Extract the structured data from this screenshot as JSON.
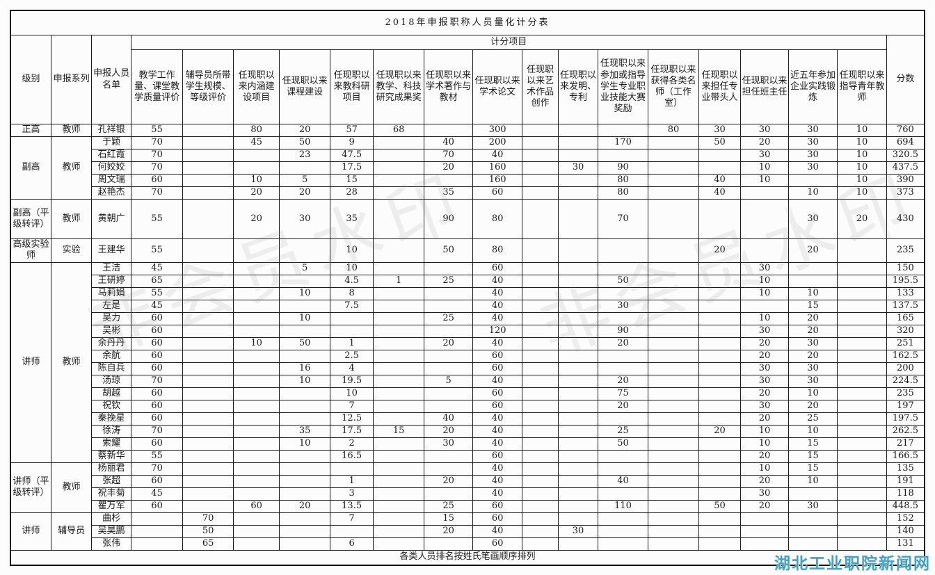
{
  "title": "2018年申报职称人员量化计分表",
  "header": {
    "scoring_group_label": "计分项目",
    "fixed_columns": [
      "级别",
      "申报系列",
      "申报人员名单"
    ],
    "scoring_columns": [
      "教学工作量、课堂教学质量评价",
      "辅导员所带学生规模、等级评价",
      "任现职以来内涵建设项目",
      "任现职以来课程建设",
      "任现职以来教科研项目",
      "任现职以来教学、科技研究成果奖",
      "任现职以来学术著作与教材",
      "任现职以来学术论文",
      "任现职以来艺术作品创作",
      "任现职以来发明、专利",
      "任现职以来参加或指导学生专业职业技能大赛奖励",
      "任现职以来获得各类名师（工作室）",
      "任现职以来担任专业带头人",
      "任现职以来担任班主任",
      "近五年参加企业实践锻炼",
      "任现职以来指导青年教师"
    ],
    "score_column": "分数"
  },
  "groups": [
    {
      "level": "正高",
      "series": "教师",
      "rows": [
        {
          "name": "孔祥银",
          "values": [
            "55",
            "",
            "80",
            "20",
            "57",
            "68",
            "",
            "300",
            "",
            "",
            "",
            "80",
            "30",
            "30",
            "30",
            "10",
            "760"
          ]
        }
      ]
    },
    {
      "level": "副高",
      "series": "教师",
      "rows": [
        {
          "name": "于颖",
          "values": [
            "70",
            "",
            "45",
            "50",
            "9",
            "",
            "40",
            "200",
            "",
            "",
            "170",
            "",
            "50",
            "20",
            "30",
            "10",
            "694"
          ]
        },
        {
          "name": "石红霞",
          "values": [
            "70",
            "",
            "",
            "23",
            "47.5",
            "",
            "70",
            "40",
            "",
            "",
            "",
            "",
            "",
            "30",
            "30",
            "10",
            "320.5"
          ]
        },
        {
          "name": "何姣姣",
          "values": [
            "70",
            "",
            "",
            "",
            "17.5",
            "",
            "20",
            "160",
            "",
            "30",
            "90",
            "",
            "",
            "10",
            "30",
            "10",
            "437.5"
          ]
        },
        {
          "name": "周文瑞",
          "values": [
            "60",
            "",
            "10",
            "5",
            "15",
            "",
            "",
            "160",
            "",
            "",
            "80",
            "",
            "40",
            "10",
            "",
            "10",
            "390"
          ]
        },
        {
          "name": "赵艳杰",
          "values": [
            "70",
            "",
            "20",
            "20",
            "28",
            "",
            "35",
            "60",
            "",
            "",
            "80",
            "",
            "40",
            "",
            "10",
            "10",
            "373"
          ]
        }
      ]
    },
    {
      "level": "副高（平级转评）",
      "series": "教师",
      "rows": [
        {
          "name": "黄朝广",
          "values": [
            "55",
            "",
            "20",
            "30",
            "35",
            "",
            "90",
            "80",
            "",
            "",
            "70",
            "",
            "",
            "",
            "30",
            "20",
            "430"
          ]
        }
      ]
    },
    {
      "level": "高级实验师",
      "series": "实验",
      "rows": [
        {
          "name": "王建华",
          "values": [
            "55",
            "",
            "",
            "",
            "10",
            "",
            "50",
            "80",
            "",
            "",
            "",
            "",
            "20",
            "",
            "20",
            "",
            "235"
          ]
        }
      ]
    },
    {
      "level": "讲师",
      "series": "教师",
      "rows": [
        {
          "name": "王洁",
          "values": [
            "45",
            "",
            "",
            "5",
            "10",
            "",
            "",
            "60",
            "",
            "",
            "",
            "",
            "",
            "30",
            "",
            "",
            "150"
          ]
        },
        {
          "name": "王研婷",
          "values": [
            "65",
            "",
            "",
            "",
            "4.5",
            "1",
            "25",
            "40",
            "",
            "",
            "50",
            "",
            "",
            "10",
            "",
            "",
            "195.5"
          ]
        },
        {
          "name": "马莉娟",
          "values": [
            "55",
            "",
            "",
            "10",
            "8",
            "",
            "",
            "40",
            "",
            "",
            "",
            "",
            "",
            "10",
            "10",
            "",
            "133"
          ]
        },
        {
          "name": "左是",
          "values": [
            "45",
            "",
            "",
            "",
            "7.5",
            "",
            "",
            "40",
            "",
            "",
            "30",
            "",
            "",
            "",
            "15",
            "",
            "137.5"
          ]
        },
        {
          "name": "吴力",
          "values": [
            "60",
            "",
            "",
            "10",
            "",
            "",
            "25",
            "40",
            "",
            "",
            "",
            "",
            "",
            "10",
            "20",
            "",
            "165"
          ]
        },
        {
          "name": "吴彬",
          "values": [
            "60",
            "",
            "",
            "",
            "",
            "",
            "",
            "120",
            "",
            "",
            "90",
            "",
            "",
            "30",
            "20",
            "",
            "320"
          ]
        },
        {
          "name": "余丹丹",
          "values": [
            "60",
            "",
            "10",
            "50",
            "1",
            "",
            "20",
            "40",
            "",
            "",
            "20",
            "",
            "",
            "20",
            "30",
            "",
            "251"
          ]
        },
        {
          "name": "余航",
          "values": [
            "60",
            "",
            "",
            "",
            "2.5",
            "",
            "",
            "60",
            "",
            "",
            "",
            "",
            "",
            "20",
            "20",
            "",
            "162.5"
          ]
        },
        {
          "name": "陈自兵",
          "values": [
            "60",
            "",
            "",
            "16",
            "4",
            "",
            "",
            "60",
            "",
            "",
            "",
            "",
            "",
            "30",
            "30",
            "",
            "200"
          ]
        },
        {
          "name": "汤琼",
          "values": [
            "70",
            "",
            "",
            "10",
            "19.5",
            "",
            "5",
            "40",
            "",
            "",
            "20",
            "",
            "",
            "30",
            "30",
            "",
            "224.5"
          ]
        },
        {
          "name": "胡越",
          "values": [
            "60",
            "",
            "",
            "",
            "10",
            "",
            "",
            "60",
            "",
            "",
            "75",
            "",
            "",
            "20",
            "10",
            "",
            "235"
          ]
        },
        {
          "name": "祝钦",
          "values": [
            "60",
            "",
            "",
            "",
            "7",
            "",
            "",
            "60",
            "",
            "",
            "20",
            "",
            "",
            "30",
            "20",
            "",
            "197"
          ]
        },
        {
          "name": "秦挽星",
          "values": [
            "60",
            "",
            "",
            "",
            "12.5",
            "",
            "40",
            "40",
            "",
            "",
            "",
            "",
            "",
            "20",
            "25",
            "",
            "197.5"
          ]
        },
        {
          "name": "徐涛",
          "values": [
            "70",
            "",
            "",
            "35",
            "17.5",
            "15",
            "20",
            "40",
            "",
            "",
            "25",
            "",
            "20",
            "10",
            "10",
            "",
            "262.5"
          ]
        },
        {
          "name": "索耀",
          "values": [
            "60",
            "",
            "",
            "10",
            "2",
            "",
            "30",
            "40",
            "",
            "",
            "50",
            "",
            "",
            "10",
            "15",
            "",
            "217"
          ]
        },
        {
          "name": "蔡新华",
          "values": [
            "55",
            "",
            "",
            "",
            "16.5",
            "",
            "",
            "60",
            "",
            "",
            "",
            "",
            "",
            "20",
            "15",
            "",
            "166.5"
          ]
        }
      ]
    },
    {
      "level": "讲师（平级转评）",
      "series": "教师",
      "rows": [
        {
          "name": "杨丽君",
          "values": [
            "70",
            "",
            "",
            "",
            "",
            "",
            "",
            "40",
            "",
            "",
            "",
            "",
            "",
            "10",
            "15",
            "",
            "135"
          ]
        },
        {
          "name": "张超",
          "values": [
            "60",
            "",
            "",
            "",
            "1",
            "",
            "20",
            "40",
            "",
            "",
            "40",
            "",
            "",
            "20",
            "10",
            "",
            "191"
          ]
        },
        {
          "name": "祝丰菊",
          "values": [
            "45",
            "",
            "",
            "",
            "3",
            "",
            "",
            "40",
            "",
            "",
            "",
            "",
            "",
            "30",
            "",
            "",
            "118"
          ]
        },
        {
          "name": "瞿万军",
          "values": [
            "60",
            "",
            "60",
            "20",
            "13.5",
            "",
            "25",
            "60",
            "",
            "",
            "110",
            "",
            "50",
            "20",
            "30",
            "",
            "448.5"
          ]
        }
      ]
    },
    {
      "level": "讲师",
      "series": "辅导员",
      "rows": [
        {
          "name": "曲杉",
          "values": [
            "",
            "70",
            "",
            "",
            "7",
            "",
            "15",
            "60",
            "",
            "",
            "",
            "",
            "",
            "",
            "",
            "",
            "152"
          ]
        },
        {
          "name": "吴昊鹏",
          "values": [
            "",
            "50",
            "",
            "",
            "",
            "",
            "20",
            "40",
            "",
            "30",
            "",
            "",
            "",
            "",
            "",
            "",
            "140"
          ]
        },
        {
          "name": "张伟",
          "values": [
            "",
            "65",
            "",
            "",
            "6",
            "",
            "",
            "60",
            "",
            "",
            "",
            "",
            "",
            "",
            "",
            "",
            "131"
          ]
        }
      ]
    }
  ],
  "footer_note": "各类人员排名按姓氏笔画顺序排列",
  "watermark": {
    "diagonal_text": "非会员水印",
    "site_text": "湖北工业职院新闻网",
    "site_color": "#4aa0bd"
  }
}
